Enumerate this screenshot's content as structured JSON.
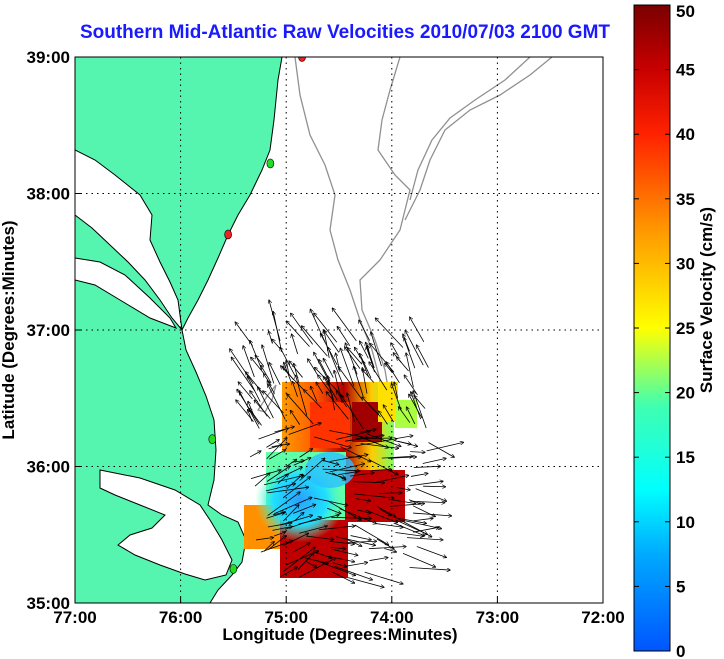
{
  "title": "Southern Mid-Atlantic Raw Velocities 2010/07/03 2100 GMT",
  "map": {
    "xlabel": "Longitude (Degrees:Minutes)",
    "ylabel": "Latitude (Degrees:Minutes)",
    "lon_ticks": [
      {
        "value": -77,
        "label": "77:00"
      },
      {
        "value": -76,
        "label": "76:00"
      },
      {
        "value": -75,
        "label": "75:00"
      },
      {
        "value": -74,
        "label": "74:00"
      },
      {
        "value": -73,
        "label": "73:00"
      },
      {
        "value": -72,
        "label": "72:00"
      }
    ],
    "lat_ticks": [
      {
        "value": 35,
        "label": "35:00"
      },
      {
        "value": 36,
        "label": "36:00"
      },
      {
        "value": 37,
        "label": "37:00"
      },
      {
        "value": 38,
        "label": "38:00"
      },
      {
        "value": 39,
        "label": "39:00"
      }
    ],
    "lon_range": [
      -77,
      -72
    ],
    "lat_range": [
      35,
      39
    ],
    "grid": "dotted",
    "colors": {
      "land": "#55f5b0",
      "coastline": "#000000",
      "bathymetry": "#909090",
      "site_active": "#22dd22",
      "site_alert": "#ee2222"
    },
    "sites": [
      {
        "lon": -74.85,
        "lat": 39.0,
        "status": "alert"
      },
      {
        "lon": -75.15,
        "lat": 38.22,
        "status": "active"
      },
      {
        "lon": -75.55,
        "lat": 37.7,
        "status": "alert"
      },
      {
        "lon": -75.7,
        "lat": 36.2,
        "status": "active"
      },
      {
        "lon": -75.5,
        "lat": 35.25,
        "status": "active"
      }
    ]
  },
  "colorbar": {
    "label": "Surface Velocity (cm/s)",
    "min": 0,
    "max": 50,
    "ticks": [
      "0",
      "5",
      "10",
      "15",
      "20",
      "25",
      "30",
      "35",
      "40",
      "45",
      "50"
    ],
    "colormap": "jet"
  }
}
